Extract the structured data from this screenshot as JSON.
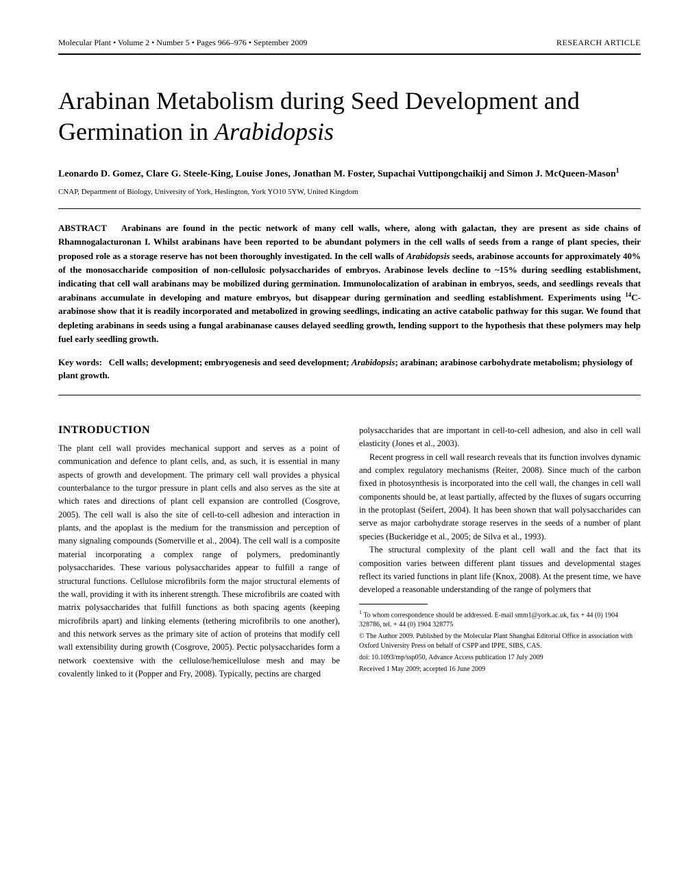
{
  "header": {
    "journal_line": "Molecular Plant • Volume 2 • Number 5 • Pages 966–976 • September 2009",
    "article_type": "RESEARCH ARTICLE"
  },
  "title_pre": "Arabinan Metabolism during Seed Development and Germination in ",
  "title_italic": "Arabidopsis",
  "authors": "Leonardo D. Gomez, Clare G. Steele-King, Louise Jones, Jonathan M. Foster, Supachai Vuttipongchaikij and Simon J. McQueen-Mason",
  "author_sup": "1",
  "affiliation": "CNAP, Department of Biology, University of York, Heslington, York YO10 5YW, United Kingdom",
  "abstract_label": "ABSTRACT",
  "abstract_p1": "Arabinans are found in the pectic network of many cell walls, where, along with galactan, they are present as side chains of Rhamnogalacturonan I. Whilst arabinans have been reported to be abundant polymers in the cell walls of seeds from a range of plant species, their proposed role as a storage reserve has not been thoroughly investigated. In the cell walls of ",
  "abstract_italic1": "Arabidopsis",
  "abstract_p2": " seeds, arabinose accounts for approximately 40% of the monosaccharide composition of non-cellulosic polysaccharides of embryos. Arabinose levels decline to ~15% during seedling establishment, indicating that cell wall arabinans may be mobilized during germination. Immunolocalization of arabinan in embryos, seeds, and seedlings reveals that arabinans accumulate in developing and mature embryos, but disappear during germination and seedling establishment. Experiments using ",
  "abstract_sup1": "14",
  "abstract_p3": "C-arabinose show that it is readily incorporated and metabolized in growing seedlings, indicating an active catabolic pathway for this sugar. We found that depleting arabinans in seeds using a fungal arabinanase causes delayed seedling growth, lending support to the hypothesis that these polymers may help fuel early seedling growth.",
  "keywords_label": "Key words:",
  "keywords_p1": "Cell walls; development; embryogenesis and seed development; ",
  "keywords_italic": "Arabidopsis",
  "keywords_p2": "; arabinan; arabinose carbohydrate metabolism; physiology of plant growth.",
  "intro_heading": "INTRODUCTION",
  "intro_para1": "The plant cell wall provides mechanical support and serves as a point of communication and defence to plant cells, and, as such, it is essential in many aspects of growth and development. The primary cell wall provides a physical counterbalance to the turgor pressure in plant cells and also serves as the site at which rates and directions of plant cell expansion are controlled (Cosgrove, 2005). The cell wall is also the site of cell-to-cell adhesion and interaction in plants, and the apoplast is the medium for the transmission and perception of many signaling compounds (Somerville et al., 2004). The cell wall is a composite material incorporating a complex range of polymers, predominantly polysaccharides. These various polysaccharides appear to fulfill a range of structural functions. Cellulose microfibrils form the major structural elements of the wall, providing it with its inherent strength. These microfibrils are coated with matrix polysaccharides that fulfill functions as both spacing agents (keeping microfibrils apart) and linking elements (tethering microfibrils to one another), and this network serves as the primary site of action of proteins that modify cell wall extensibility during growth (Cosgrove, 2005). Pectic polysaccharides form a network coextensive with the cellulose/hemicellulose mesh and may be covalently linked to it (Popper and Fry, 2008). Typically, pectins are charged",
  "intro_para2": "polysaccharides that are important in cell-to-cell adhesion, and also in cell wall elasticity (Jones et al., 2003).",
  "intro_para3": "Recent progress in cell wall research reveals that its function involves dynamic and complex regulatory mechanisms (Reiter, 2008). Since much of the carbon fixed in photosynthesis is incorporated into the cell wall, the changes in cell wall components should be, at least partially, affected by the fluxes of sugars occurring in the protoplast (Seifert, 2004). It has been shown that wall polysaccharides can serve as major carbohydrate storage reserves in the seeds of a number of plant species (Buckeridge et al., 2005; de Silva et al., 1993).",
  "intro_para4": "The structural complexity of the plant cell wall and the fact that its composition varies between different plant tissues and developmental stages reflect its varied functions in plant life (Knox, 2008). At the present time, we have developed a reasonable understanding of the range of polymers that",
  "footnote1_sup": "1",
  "footnote1": " To whom correspondence should be addressed. E-mail smm1@york.ac.uk, fax + 44 (0) 1904 328786, tel. + 44 (0) 1904 328775",
  "footnote2": "© The Author 2009. Published by the Molecular Plant Shanghai Editorial Office in association with Oxford University Press on behalf of CSPP and IPPE, SIBS, CAS.",
  "footnote3": "doi: 10.1093/mp/ssp050, Advance Access publication 17 July 2009",
  "footnote4": "Received 1 May 2009; accepted 16 June 2009"
}
